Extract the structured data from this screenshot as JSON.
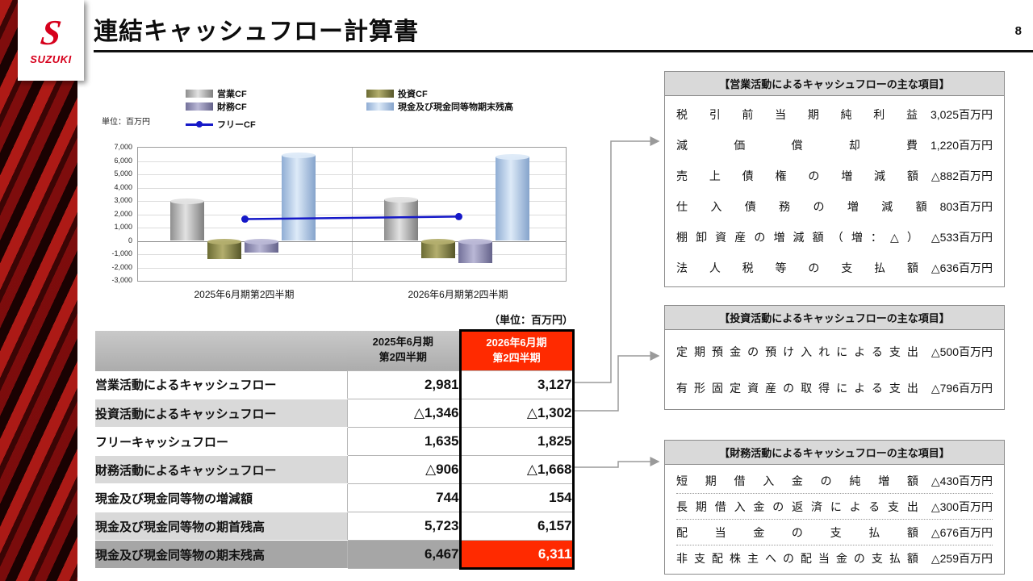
{
  "meta": {
    "page_number": "8"
  },
  "brand": {
    "logo_letter": "S",
    "logo_text": "SUZUKI"
  },
  "header": {
    "title": "連結キャッシュフロー計算書"
  },
  "colors": {
    "highlight_red": "#ff2a00",
    "brand_red": "#d6001c",
    "freecf_line": "#1518c8"
  },
  "chart_data": {
    "type": "bar+line",
    "unit_label": "単位：百万円",
    "categories": [
      "2025年6月期第2四半期",
      "2026年6月期第2四半期"
    ],
    "series": [
      {
        "name": "営業CF",
        "type": "bar",
        "values": [
          2981,
          3127
        ],
        "shades": [
          "#8e8e8e",
          "#e2e2e2",
          "#7f7f7f"
        ]
      },
      {
        "name": "投資CF",
        "type": "bar",
        "values": [
          -1346,
          -1302
        ],
        "shades": [
          "#6b6b33",
          "#b3ae6e",
          "#565629"
        ]
      },
      {
        "name": "財務CF",
        "type": "bar",
        "values": [
          -906,
          -1668
        ],
        "shades": [
          "#73719a",
          "#bab8d6",
          "#64628a"
        ]
      },
      {
        "name": "現金及び現金同等物期末残高",
        "type": "bar",
        "values": [
          6467,
          6311
        ],
        "shades": [
          "#8fadd4",
          "#ddeaf8",
          "#85a3cb"
        ]
      },
      {
        "name": "フリーCF",
        "type": "line",
        "values": [
          1635,
          1825
        ],
        "color": "#1518c8"
      }
    ],
    "ylim": [
      -3000,
      7000
    ],
    "ytick_step": 1000,
    "grid": true,
    "legend_position": "top"
  },
  "summary_table": {
    "unit_note": "（単位：百万円）",
    "col_headers": [
      {
        "line1": "2025年6月期",
        "line2": "第2四半期"
      },
      {
        "line1": "2026年6月期",
        "line2": "第2四半期"
      }
    ],
    "rows": [
      {
        "label": "営業活動によるキャッシュフロー",
        "v2025": "2,981",
        "v2026": "3,127"
      },
      {
        "label": "投資活動によるキャッシュフロー",
        "v2025": "△1,346",
        "v2026": "△1,302"
      },
      {
        "label": "フリーキャッシュフロー",
        "v2025": "1,635",
        "v2026": "1,825"
      },
      {
        "label": "財務活動によるキャッシュフロー",
        "v2025": "△906",
        "v2026": "△1,668"
      },
      {
        "label": "現金及び現金同等物の増減額",
        "v2025": "744",
        "v2026": "154"
      },
      {
        "label": "現金及び現金同等物の期首残高",
        "v2025": "5,723",
        "v2026": "6,157"
      },
      {
        "label": "現金及び現金同等物の期末残高",
        "v2025": "6,467",
        "v2026": "6,311"
      }
    ]
  },
  "panels": [
    {
      "title": "【営業活動によるキャッシュフローの主な項目】",
      "items": [
        {
          "label": "税引前当期純利益",
          "value": "3,025百万円"
        },
        {
          "label": "減価償却費",
          "value": "1,220百万円"
        },
        {
          "label": "売上債権の増減額",
          "value": "△882百万円"
        },
        {
          "label": "仕入債務の増減額",
          "value": "803百万円"
        },
        {
          "label": "棚卸資産の増減額（増：△）",
          "value": "△533百万円"
        },
        {
          "label": "法人税等の支払額",
          "value": "△636百万円"
        }
      ]
    },
    {
      "title": "【投資活動によるキャッシュフローの主な項目】",
      "items": [
        {
          "label": "定期預金の預け入れによる支出",
          "value": "△500百万円"
        },
        {
          "label": "有形固定資産の取得による支出",
          "value": "△796百万円"
        }
      ]
    },
    {
      "title": "【財務活動によるキャッシュフローの主な項目】",
      "items": [
        {
          "label": "短期借入金の純増額",
          "value": "△430百万円"
        },
        {
          "label": "長期借入金の返済による支出",
          "value": "△300百万円"
        },
        {
          "label": "配当金の支払額",
          "value": "△676百万円"
        },
        {
          "label": "非支配株主への配当金の支払額",
          "value": "△259百万円"
        }
      ]
    }
  ]
}
